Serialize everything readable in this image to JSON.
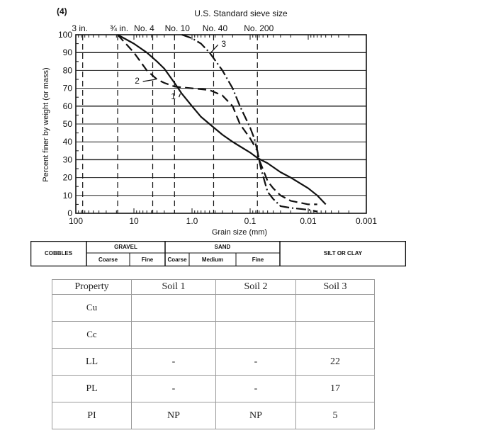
{
  "figure_number": "(4)",
  "top_axis_title": "U.S. Standard sieve size",
  "sieve_labels": [
    "3 in.",
    "¾ in.",
    "No. 4",
    "No. 10",
    "No. 40",
    "No. 200"
  ],
  "chart_data": {
    "type": "line",
    "xlabel": "Grain size (mm)",
    "ylabel": "Percent finer by weight (or mass)",
    "x_scale": "log",
    "x_reversed": true,
    "xlim": [
      100,
      0.001
    ],
    "ylim": [
      0,
      100
    ],
    "x_ticks": [
      "100",
      "10",
      "1.0",
      "0.1",
      "0.01",
      "0.001"
    ],
    "y_ticks": [
      "0",
      "10",
      "20",
      "30",
      "40",
      "50",
      "60",
      "70",
      "80",
      "90",
      "100"
    ],
    "sieve_sizes_mm": [
      76.2,
      19.05,
      4.75,
      2.0,
      0.425,
      0.075
    ],
    "series": [
      {
        "name": "1",
        "style": "solid",
        "x": [
          19.05,
          10,
          6,
          4,
          3,
          2,
          1.5,
          1,
          0.7,
          0.5,
          0.3,
          0.2,
          0.15,
          0.1,
          0.075,
          0.05,
          0.03,
          0.02,
          0.01,
          0.007,
          0.005
        ],
        "y": [
          100,
          95,
          90,
          85,
          81,
          73,
          67,
          60,
          54,
          50,
          44,
          40,
          37.5,
          34,
          31,
          28,
          23,
          20,
          14,
          10,
          5
        ]
      },
      {
        "name": "2",
        "style": "dash",
        "x": [
          19.05,
          10,
          6,
          4,
          3,
          2,
          1.5,
          1,
          0.7,
          0.5,
          0.3,
          0.2,
          0.15,
          0.1,
          0.075,
          0.07,
          0.05,
          0.04,
          0.03,
          0.02,
          0.01,
          0.007
        ],
        "y": [
          100,
          90,
          80,
          75,
          73,
          71,
          70.5,
          70,
          69.5,
          69,
          66,
          60,
          50,
          42,
          35,
          30,
          18,
          14,
          10,
          7,
          5,
          5
        ]
      },
      {
        "name": "3",
        "style": "dashdot",
        "x": [
          1.5,
          1,
          0.7,
          0.5,
          0.3,
          0.2,
          0.15,
          0.1,
          0.085,
          0.075,
          0.065,
          0.05,
          0.04,
          0.03,
          0.02,
          0.01,
          0.007
        ],
        "y": [
          100,
          98,
          95,
          90,
          80,
          70,
          60,
          48,
          42,
          35,
          25,
          12,
          8,
          4,
          3,
          2,
          1
        ]
      }
    ],
    "curve_labels": [
      "1",
      "2",
      "3"
    ]
  },
  "classification": {
    "cobbles": "COBBLES",
    "gravel": "GRAVEL",
    "gravel_coarse": "Coarse",
    "gravel_fine": "Fine",
    "sand": "SAND",
    "sand_coarse": "Coarse",
    "sand_medium": "Medium",
    "sand_fine": "Fine",
    "silt_clay": "SILT OR CLAY"
  },
  "property_table": {
    "headers": [
      "Property",
      "Soil 1",
      "Soil 2",
      "Soil 3"
    ],
    "rows": [
      [
        "Cu",
        "",
        "",
        ""
      ],
      [
        "Cc",
        "",
        "",
        ""
      ],
      [
        "LL",
        "-",
        "-",
        "22"
      ],
      [
        "PL",
        "-",
        "-",
        "17"
      ],
      [
        "PI",
        "NP",
        "NP",
        "5"
      ]
    ]
  }
}
